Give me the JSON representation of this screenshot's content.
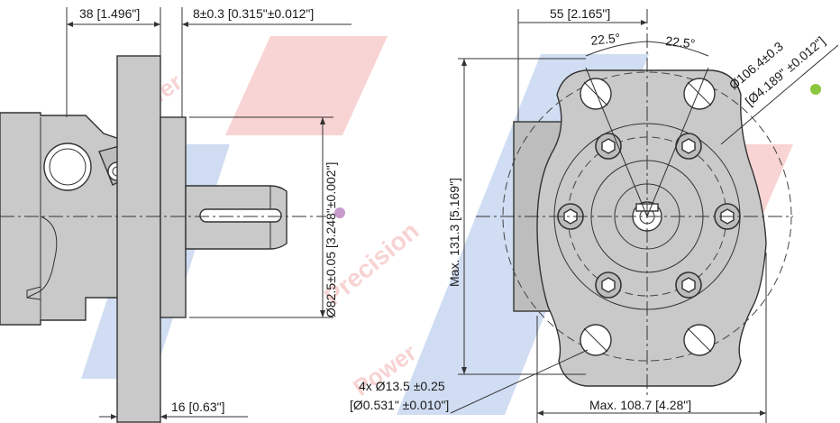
{
  "dimensions": {
    "side_length": "38 [1.496\"]",
    "flange_thickness": "8±0.3 [0.315\"±0.012\"]",
    "pilot_diameter": "Ø82.5±0.05 [3.248\"±0.002\"]",
    "pilot_depth": "16 [0.63\"]",
    "bolt_offset": "55 [2.165\"]",
    "angle_left": "22.5°",
    "angle_right": "22.5°",
    "bolt_circle_line1": "Ø106.4±0.3",
    "bolt_circle_line2": "[Ø4.189\" ±0.012\"]",
    "max_height": "Max. 131.3 [5.169\"]",
    "holes_line1": "4x Ø13.5 ±0.25",
    "holes_line2": "[Ø0.531\" ±0.010\"]",
    "max_width": "Max. 108.7 [4.28\"]"
  },
  "watermark": {
    "text1": "Power",
    "text2": "Precision",
    "text3": "Power"
  },
  "colors": {
    "part": "#c9c9c9",
    "dot_pink": "#c79acb",
    "dot_green": "#8cc63f",
    "watermark_red": "#e23b3b",
    "watermark_blue": "#2a63c4"
  }
}
